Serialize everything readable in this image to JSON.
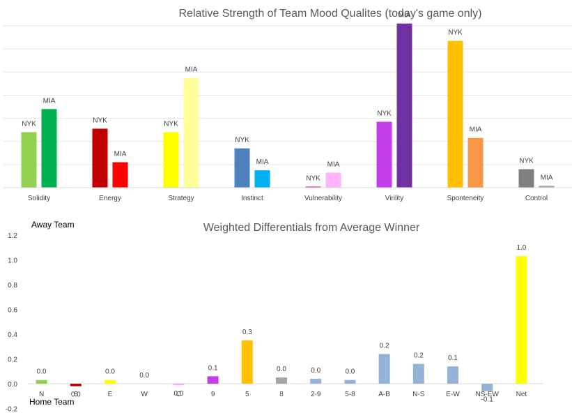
{
  "chart_data": [
    {
      "type": "bar",
      "title": "Relative Strength of Team Mood Qualites (today's game only)",
      "categories": [
        "Solidity",
        "Energy",
        "Strategy",
        "Instinct",
        "Vulnerability",
        "Virility",
        "Sponteneity",
        "Control"
      ],
      "bar_labels": [
        "NYK",
        "MIA"
      ],
      "grid": true,
      "y_axis_labels": false,
      "ylim": [
        0,
        7
      ],
      "series": [
        {
          "name": "NYK",
          "values": [
            2.4,
            2.55,
            2.4,
            1.7,
            0.05,
            2.85,
            6.35,
            0.8
          ],
          "colors": [
            "#92d050",
            "#c00000",
            "#ffff00",
            "#4f81bd",
            "#ff3399",
            "#c33ee8",
            "#ffc000",
            "#808080"
          ]
        },
        {
          "name": "MIA",
          "values": [
            3.4,
            1.1,
            4.75,
            0.75,
            0.65,
            7.1,
            2.15,
            0.08
          ],
          "colors": [
            "#00b050",
            "#ff0000",
            "#ffff99",
            "#00b0f0",
            "#ffb3ff",
            "#7030a0",
            "#f79646",
            "#a6a6a6"
          ]
        }
      ]
    },
    {
      "type": "bar",
      "title": "Weighted Differentials from Average Winner",
      "ylabel_top": "Away Team",
      "ylabel_bottom": "Home Team",
      "categories": [
        "N",
        "S",
        "E",
        "W",
        "C",
        "9",
        "5",
        "8",
        "2-9",
        "5-8",
        "A-B",
        "N-S",
        "E-W",
        "NS-EW",
        "Net"
      ],
      "values": [
        0.03,
        -0.02,
        0.03,
        0.0,
        -0.01,
        0.06,
        0.35,
        0.05,
        0.04,
        0.03,
        0.24,
        0.16,
        0.14,
        -0.06,
        1.03
      ],
      "data_labels": [
        "0.0",
        "0.0",
        "0.0",
        "0.0",
        "0.0",
        "0.1",
        "0.3",
        "0.0",
        "0.0",
        "0.0",
        "0.2",
        "0.2",
        "0.1",
        "-0.1",
        "1.0"
      ],
      "colors": [
        "#92d050",
        "#c00000",
        "#ffff00",
        "#4f81bd",
        "#ff99ff",
        "#c33ee8",
        "#ffc000",
        "#a6a6a6",
        "#95b3d7",
        "#95b3d7",
        "#95b3d7",
        "#95b3d7",
        "#95b3d7",
        "#95b3d7",
        "#ffff00"
      ],
      "ylim": [
        -0.2,
        1.2
      ],
      "yticks": [
        "-0.2",
        "0.0",
        "0.2",
        "0.4",
        "0.6",
        "0.8",
        "1.0",
        "1.2"
      ],
      "grid": false
    }
  ]
}
